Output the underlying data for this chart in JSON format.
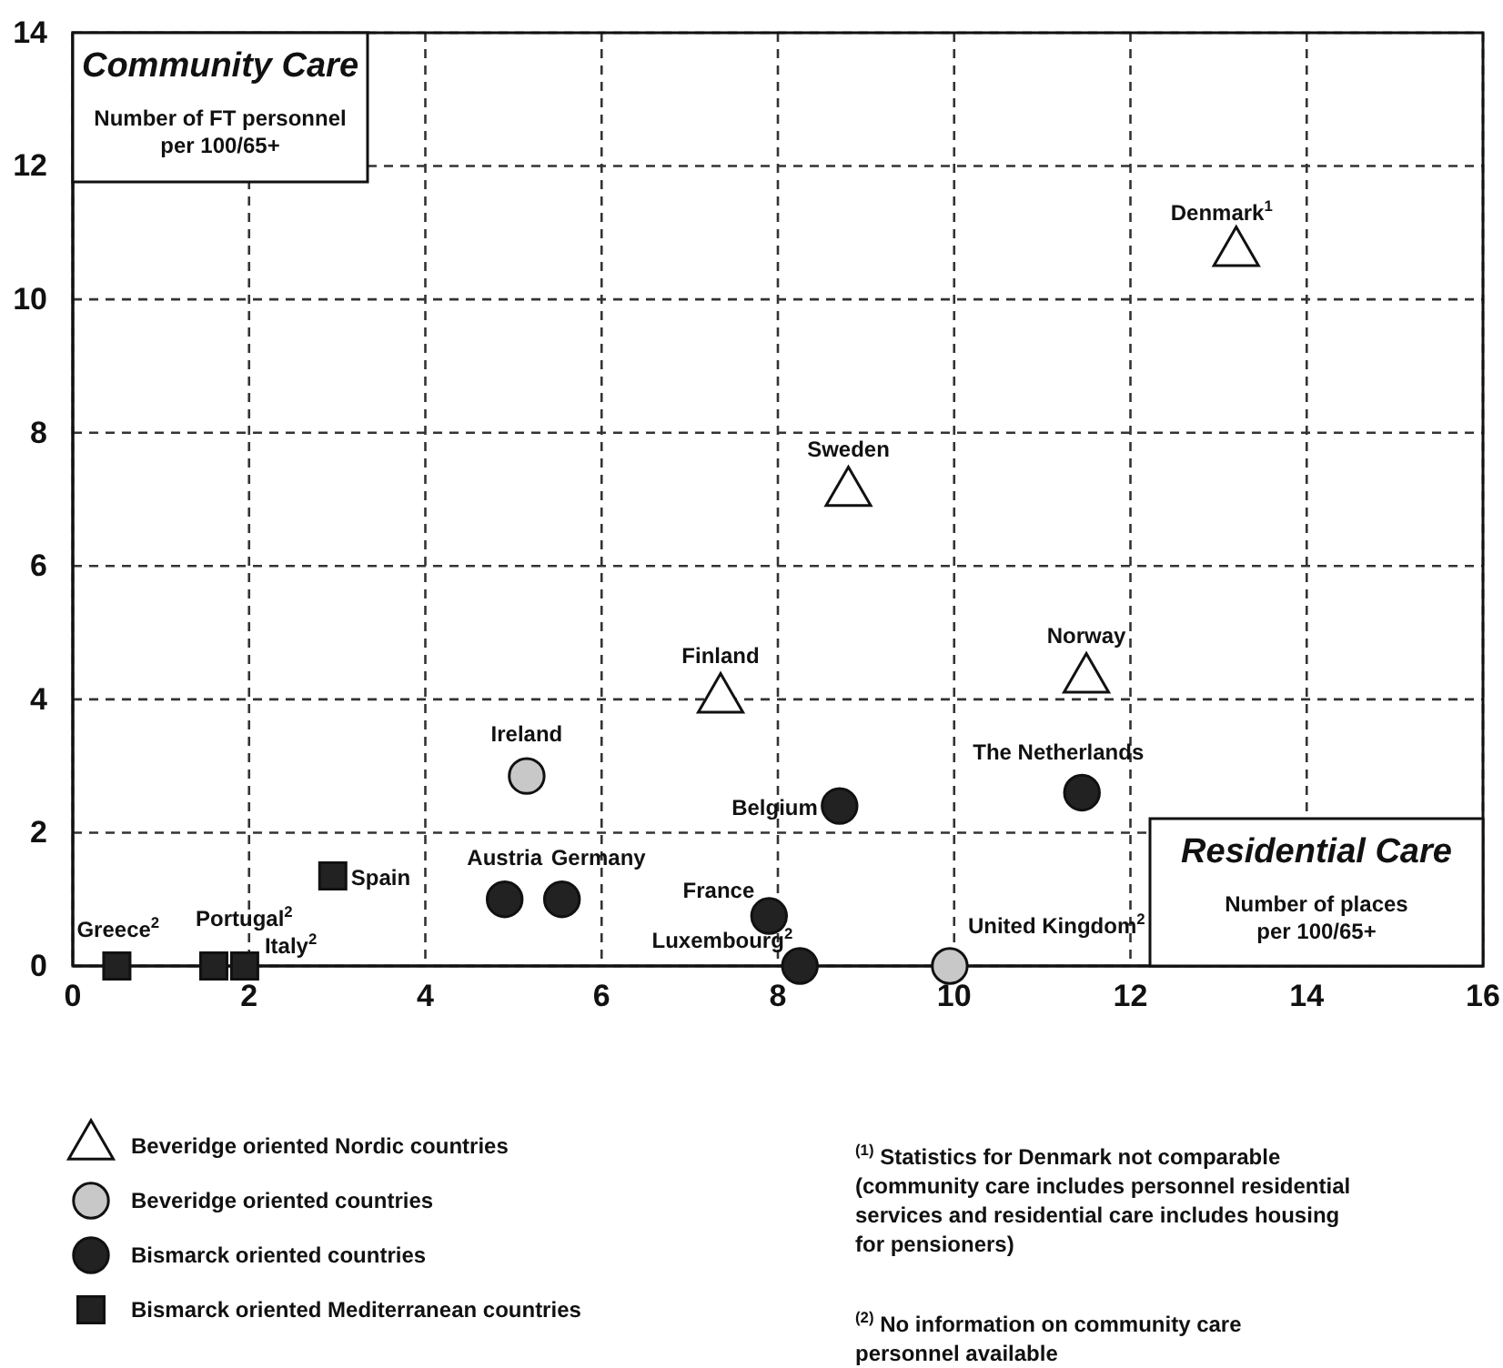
{
  "chart_data": {
    "type": "scatter",
    "ylabel": "Community Care\nNumber of FT personnel\nper 100/65+",
    "xlabel": "Residential Care\nNumber of places\nper 100/65+",
    "xlim": [
      0,
      16
    ],
    "xticks": [
      0,
      2,
      4,
      6,
      8,
      10,
      12,
      14,
      16
    ],
    "ylim": [
      0,
      14
    ],
    "yticks": [
      0,
      2,
      4,
      6,
      8,
      10,
      12,
      14
    ],
    "grid": true,
    "line_style": "dashed",
    "legend": "bottom left",
    "series": [
      {
        "name": "Beveridge oriented Nordic countries",
        "color": "#ffffff",
        "marker": "triangle",
        "x": [
          13.2,
          8.8,
          11.5,
          7.35
        ],
        "values": [
          10.7,
          7.1,
          4.3,
          4.0
        ]
      },
      {
        "name": "Beveridge oriented countries",
        "color": "#c8c8c8",
        "marker": "circle",
        "x": [
          5.15,
          9.95
        ],
        "values": [
          2.85,
          0
        ]
      },
      {
        "name": "Bismarck oriented countries",
        "color": "#222222",
        "marker": "circle",
        "x": [
          8.7,
          11.45,
          4.9,
          5.55,
          7.9,
          8.25
        ],
        "values": [
          2.4,
          2.6,
          1.0,
          1.0,
          0.75,
          0
        ]
      },
      {
        "name": "Bismarck oriented Mediterranean countries",
        "color": "#222222",
        "marker": "square",
        "x": [
          2.95,
          0.5,
          1.6,
          1.95
        ],
        "values": [
          1.35,
          0,
          0,
          0
        ]
      }
    ],
    "annotations": [
      {
        "text": "Denmark$^{1}$",
        "x": 13.2,
        "y": 10.7
      },
      {
        "text": "Sweden",
        "x": 8.8,
        "y": 7.1
      },
      {
        "text": "Norway",
        "x": 11.5,
        "y": 4.3
      },
      {
        "text": "Finland",
        "x": 7.35,
        "y": 4.0
      },
      {
        "text": "Ireland",
        "x": 5.15,
        "y": 2.85
      },
      {
        "text": "United Kingdom$^{2}$",
        "x": 9.95,
        "y": 0
      },
      {
        "text": "Belgium",
        "x": 8.7,
        "y": 2.4
      },
      {
        "text": "The Netherlands",
        "x": 11.45,
        "y": 2.6
      },
      {
        "text": "Austria",
        "x": 4.9,
        "y": 1.0
      },
      {
        "text": "Germany",
        "x": 5.55,
        "y": 1.0
      },
      {
        "text": "France",
        "x": 7.9,
        "y": 0.75
      },
      {
        "text": "Luxembourg$^{2}$",
        "x": 8.25,
        "y": 0
      },
      {
        "text": "Spain",
        "x": 2.95,
        "y": 1.35
      },
      {
        "text": "Greece$^{2}$",
        "x": 0.5,
        "y": 0
      },
      {
        "text": "Portugal$^{2}$",
        "x": 1.6,
        "y": 0
      },
      {
        "text": "Italy$^{2}$",
        "x": 1.95,
        "y": 0
      },
      "$^{(1)}$ Statistics for Denmark not comparable\n(community care includes personnel residential\nservices and residential care includes housing\nfor pensioners)",
      "$^{(2)}$ No information on community care\npersonnel available"
    ]
  }
}
